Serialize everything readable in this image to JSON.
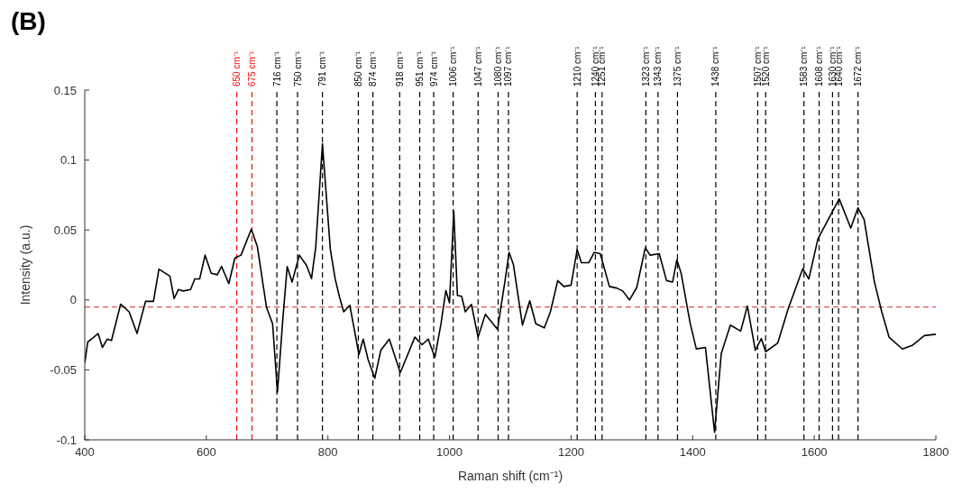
{
  "chart_data": {
    "type": "line",
    "title": "(B)",
    "xlabel": "Raman shift (cm⁻¹)",
    "ylabel": "Intensity (a.u.)",
    "xlim": [
      400,
      1800
    ],
    "xticks": [
      400,
      600,
      800,
      1000,
      1200,
      1400,
      1600,
      1800
    ],
    "ylim": [
      -0.1,
      0.15
    ],
    "yticks": [
      -0.1,
      -0.05,
      0,
      0.05,
      0.1,
      0.15
    ],
    "grid": false,
    "marker": "none",
    "line_style": "solid",
    "series": [
      {
        "color": "#000000",
        "x": [
          400,
          405,
          411,
          422,
          429,
          437,
          444,
          459,
          473,
          486,
          500,
          513,
          522,
          540,
          547,
          554,
          562,
          574,
          581,
          589,
          598,
          608,
          618,
          625,
          637,
          647,
          657,
          674,
          684,
          699,
          709,
          717,
          726,
          733,
          741,
          753,
          765,
          773,
          780,
          791,
          804,
          812,
          819,
          826,
          836,
          851,
          858,
          866,
          877,
          887,
          901,
          919,
          943,
          955,
          965,
          976,
          986,
          994,
          1000,
          1007,
          1013,
          1020,
          1026,
          1036,
          1047,
          1059,
          1079,
          1091,
          1098,
          1105,
          1120,
          1132,
          1142,
          1156,
          1166,
          1178,
          1188,
          1200,
          1210,
          1217,
          1229,
          1238,
          1248,
          1263,
          1275,
          1285,
          1296,
          1308,
          1322,
          1330,
          1345,
          1357,
          1367,
          1374,
          1381,
          1396,
          1406,
          1421,
          1436,
          1447,
          1462,
          1479,
          1490,
          1503,
          1513,
          1520,
          1540,
          1557,
          1581,
          1591,
          1606,
          1628,
          1641,
          1660,
          1672,
          1682,
          1699,
          1711,
          1723,
          1745,
          1762,
          1781,
          1800
        ],
        "values": [
          -0.045,
          -0.03,
          -0.028,
          -0.024,
          -0.034,
          -0.028,
          -0.029,
          -0.003,
          -0.0085,
          -0.024,
          -0.001,
          -0.001,
          0.022,
          0.017,
          0.001,
          0.0074,
          0.0064,
          0.0074,
          0.015,
          0.015,
          0.032,
          0.019,
          0.018,
          0.024,
          0.0117,
          0.03,
          0.032,
          0.0506,
          0.038,
          -0.0053,
          -0.017,
          -0.066,
          -0.0128,
          0.0238,
          0.0128,
          0.032,
          0.0245,
          0.0153,
          0.038,
          0.1116,
          0.036,
          0.0149,
          0.0021,
          -0.0085,
          -0.0038,
          -0.039,
          -0.028,
          -0.0425,
          -0.056,
          -0.036,
          -0.028,
          -0.052,
          -0.0266,
          -0.032,
          -0.028,
          -0.041,
          -0.017,
          0.0068,
          -0.002,
          0.0634,
          0.0032,
          0.0026,
          -0.0085,
          -0.0032,
          -0.0266,
          -0.0102,
          -0.021,
          0.0128,
          0.034,
          0.0255,
          -0.018,
          -0.0006,
          -0.017,
          -0.02,
          -0.0085,
          0.0138,
          0.0096,
          0.0106,
          0.036,
          0.0266,
          0.0266,
          0.034,
          0.033,
          0.0096,
          0.0085,
          0.0064,
          0,
          0.0089,
          0.0372,
          0.032,
          0.033,
          0.0138,
          0.0128,
          0.0287,
          0.0191,
          -0.017,
          -0.035,
          -0.034,
          -0.0946,
          -0.0383,
          -0.018,
          -0.0223,
          -0.0043,
          -0.036,
          -0.0276,
          -0.037,
          -0.0308,
          -0.0064,
          0.0223,
          0.0149,
          0.0436,
          0.0617,
          0.0723,
          0.0514,
          0.0659,
          0.0574,
          0.0128,
          -0.0085,
          -0.0266,
          -0.0351,
          -0.0323,
          -0.0255,
          -0.0245
        ]
      }
    ],
    "ref_lines": [
      {
        "axis": "y",
        "value": -0.005,
        "color": "#e05555",
        "line_style": "dashed"
      },
      {
        "axis": "x",
        "value": 650,
        "label": "650 cm⁻¹",
        "color": "#ff0000",
        "line_style": "dashed"
      },
      {
        "axis": "x",
        "value": 675,
        "label": "675 cm⁻¹",
        "color": "#ff0000",
        "line_style": "dashed"
      },
      {
        "axis": "x",
        "value": 716,
        "label": "716 cm⁻¹",
        "color": "#000000",
        "line_style": "dashed"
      },
      {
        "axis": "x",
        "value": 750,
        "label": "750 cm⁻¹",
        "color": "#000000",
        "line_style": "dashed"
      },
      {
        "axis": "x",
        "value": 791,
        "label": "791 cm⁻¹",
        "color": "#000000",
        "line_style": "dashed"
      },
      {
        "axis": "x",
        "value": 850,
        "label": "850 cm⁻¹",
        "color": "#000000",
        "line_style": "dashed"
      },
      {
        "axis": "x",
        "value": 874,
        "label": "874 cm⁻¹",
        "color": "#000000",
        "line_style": "dashed"
      },
      {
        "axis": "x",
        "value": 918,
        "label": "918 cm⁻¹",
        "color": "#000000",
        "line_style": "dashed"
      },
      {
        "axis": "x",
        "value": 951,
        "label": "951 cm⁻¹",
        "color": "#000000",
        "line_style": "dashed"
      },
      {
        "axis": "x",
        "value": 974,
        "label": "974 cm⁻¹",
        "color": "#000000",
        "line_style": "dashed"
      },
      {
        "axis": "x",
        "value": 1006,
        "label": "1006 cm⁻¹",
        "color": "#000000",
        "line_style": "dashed"
      },
      {
        "axis": "x",
        "value": 1047,
        "label": "1047 cm⁻¹",
        "color": "#000000",
        "line_style": "dashed"
      },
      {
        "axis": "x",
        "value": 1080,
        "label": "1080 cm⁻¹",
        "color": "#000000",
        "line_style": "dashed"
      },
      {
        "axis": "x",
        "value": 1097,
        "label": "1097 cm⁻¹",
        "color": "#000000",
        "line_style": "dashed"
      },
      {
        "axis": "x",
        "value": 1210,
        "label": "1210 cm⁻¹",
        "color": "#000000",
        "line_style": "dashed"
      },
      {
        "axis": "x",
        "value": 1240,
        "label": "1240 cm⁻¹",
        "color": "#000000",
        "line_style": "dashed"
      },
      {
        "axis": "x",
        "value": 1251,
        "label": "1251 cm⁻¹",
        "color": "#000000",
        "line_style": "dashed"
      },
      {
        "axis": "x",
        "value": 1323,
        "label": "1323 cm⁻¹",
        "color": "#000000",
        "line_style": "dashed"
      },
      {
        "axis": "x",
        "value": 1343,
        "label": "1343 cm⁻¹",
        "color": "#000000",
        "line_style": "dashed"
      },
      {
        "axis": "x",
        "value": 1375,
        "label": "1375 cm⁻¹",
        "color": "#000000",
        "line_style": "dashed"
      },
      {
        "axis": "x",
        "value": 1438,
        "label": "1438 cm⁻¹",
        "color": "#000000",
        "line_style": "dashed"
      },
      {
        "axis": "x",
        "value": 1507,
        "label": "1507 cm⁻¹",
        "color": "#000000",
        "line_style": "dashed"
      },
      {
        "axis": "x",
        "value": 1520,
        "label": "1520 cm⁻¹",
        "color": "#000000",
        "line_style": "dashed"
      },
      {
        "axis": "x",
        "value": 1583,
        "label": "1583 cm⁻¹",
        "color": "#000000",
        "line_style": "dashed"
      },
      {
        "axis": "x",
        "value": 1608,
        "label": "1608 cm⁻¹",
        "color": "#000000",
        "line_style": "dashed"
      },
      {
        "axis": "x",
        "value": 1630,
        "label": "1630 cm⁻¹",
        "color": "#000000",
        "line_style": "dashed"
      },
      {
        "axis": "x",
        "value": 1640,
        "label": "1640 cm⁻¹",
        "color": "#000000",
        "line_style": "dashed"
      },
      {
        "axis": "x",
        "value": 1672,
        "label": "1672 cm⁻¹",
        "color": "#000000",
        "line_style": "dashed"
      }
    ]
  }
}
